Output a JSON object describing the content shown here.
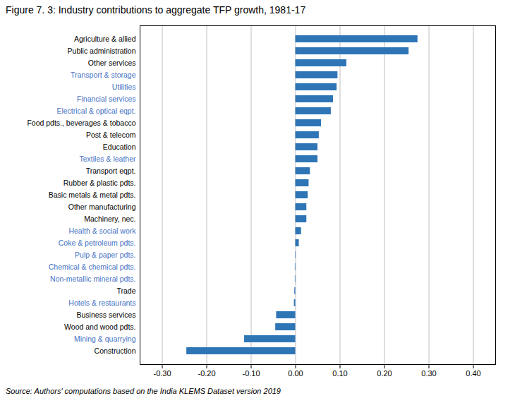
{
  "chart_data": {
    "type": "bar",
    "orientation": "horizontal",
    "title": "Figure 7. 3: Industry contributions to aggregate TFP growth, 1981-17",
    "source": "Source: Authors' computations based on the India KLEMS Dataset version 2019",
    "categories": [
      "Agriculture & allied",
      "Public administration",
      "Other services",
      "Transport & storage",
      "Utilities",
      "Financial services",
      "Electrical & optical eqpt.",
      "Food pdts., beverages & tobacco",
      "Post & telecom",
      "Education",
      "Textiles & leather",
      "Transport eqpt.",
      "Rubber & plastic pdts.",
      "Basic metals & metal pdts.",
      "Other manufacturing",
      "Machinery, nec.",
      "Health & social work",
      "Coke & petroleum pdts.",
      "Pulp & paper pdts.",
      "Chemical & chemical pdts.",
      "Non-metallic mineral pdts.",
      "Trade",
      "Hotels & restaurants",
      "Business services",
      "Wood and wood pdts.",
      "Mining & quarrying",
      "Construction"
    ],
    "values": [
      0.275,
      0.255,
      0.115,
      0.095,
      0.093,
      0.085,
      0.08,
      0.058,
      0.053,
      0.05,
      0.05,
      0.033,
      0.03,
      0.028,
      0.025,
      0.025,
      0.013,
      0.008,
      0.001,
      -0.001,
      -0.001,
      -0.002,
      -0.003,
      -0.043,
      -0.045,
      -0.115,
      -0.245
    ],
    "label_colors": [
      "black",
      "black",
      "black",
      "#4472C4",
      "#4472C4",
      "#4472C4",
      "#4472C4",
      "black",
      "black",
      "black",
      "#4472C4",
      "black",
      "black",
      "black",
      "black",
      "black",
      "#4472C4",
      "#4472C4",
      "#4472C4",
      "#4472C4",
      "#4472C4",
      "black",
      "#4472C4",
      "black",
      "black",
      "#4472C4",
      "black"
    ],
    "color": "#2E75B6",
    "xlim": [
      -0.35,
      0.45
    ],
    "xticks": [
      {
        "value": -0.3,
        "label": "-0.30"
      },
      {
        "value": -0.2,
        "label": "-0.20"
      },
      {
        "value": -0.1,
        "label": "-0.10"
      },
      {
        "value": 0.0,
        "label": "0.00"
      },
      {
        "value": 0.1,
        "label": "0.10"
      },
      {
        "value": 0.2,
        "label": "0.20"
      },
      {
        "value": 0.3,
        "label": "0.30"
      },
      {
        "value": 0.4,
        "label": "0.40"
      }
    ],
    "grid": true
  }
}
